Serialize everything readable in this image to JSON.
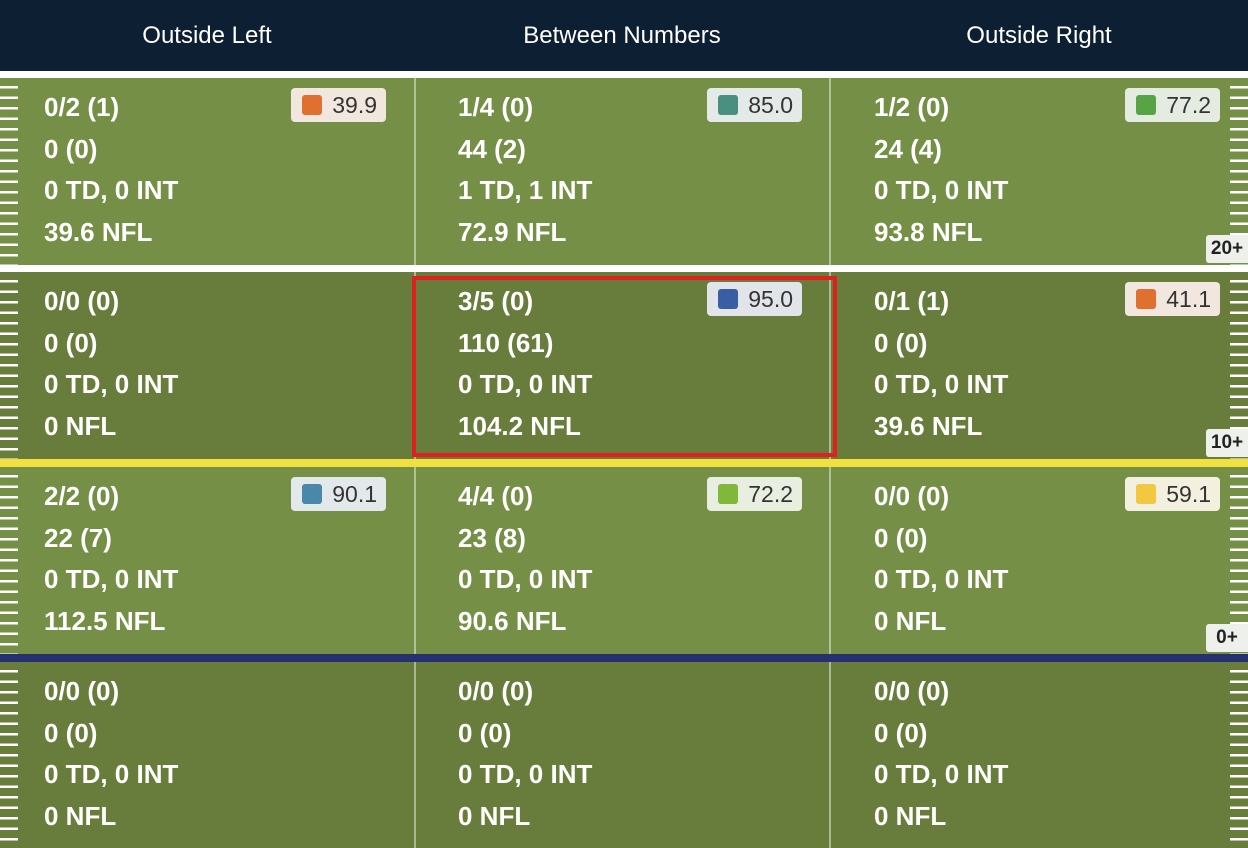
{
  "header": {
    "columns": [
      "Outside Left",
      "Between Numbers",
      "Outside Right"
    ]
  },
  "rows": [
    {
      "label": "20+",
      "cells": [
        {
          "lines": [
            "0/2 (1)",
            "0 (0)",
            "0 TD, 0 INT",
            "39.6 NFL"
          ],
          "grade": "39.9",
          "grade_color": "#e07030"
        },
        {
          "lines": [
            "1/4 (0)",
            "44 (2)",
            "1 TD, 1 INT",
            "72.9 NFL"
          ],
          "grade": "85.0",
          "grade_color": "#4a9080"
        },
        {
          "lines": [
            "1/2 (0)",
            "24 (4)",
            "0 TD, 0 INT",
            "93.8 NFL"
          ],
          "grade": "77.2",
          "grade_color": "#58a444"
        }
      ]
    },
    {
      "label": "10+",
      "cells": [
        {
          "lines": [
            "0/0 (0)",
            "0 (0)",
            "0 TD, 0 INT",
            "0 NFL"
          ]
        },
        {
          "lines": [
            "3/5 (0)",
            "110 (61)",
            "0 TD, 0 INT",
            "104.2 NFL"
          ],
          "grade": "95.0",
          "grade_color": "#3a5ea4",
          "selected": true
        },
        {
          "lines": [
            "0/1 (1)",
            "0 (0)",
            "0 TD, 0 INT",
            "39.6 NFL"
          ],
          "grade": "41.1",
          "grade_color": "#e07030"
        }
      ]
    },
    {
      "label": "0+",
      "cells": [
        {
          "lines": [
            "2/2 (0)",
            "22 (7)",
            "0 TD, 0 INT",
            "112.5 NFL"
          ],
          "grade": "90.1",
          "grade_color": "#4a88aa"
        },
        {
          "lines": [
            "4/4 (0)",
            "23 (8)",
            "0 TD, 0 INT",
            "90.6 NFL"
          ],
          "grade": "72.2",
          "grade_color": "#80b83a"
        },
        {
          "lines": [
            "0/0 (0)",
            "0 (0)",
            "0 TD, 0 INT",
            "0 NFL"
          ],
          "grade": "59.1",
          "grade_color": "#f2c840"
        }
      ]
    },
    {
      "cells": [
        {
          "lines": [
            "0/0 (0)",
            "0 (0)",
            "0 TD, 0 INT",
            "0 NFL"
          ]
        },
        {
          "lines": [
            "0/0 (0)",
            "0 (0)",
            "0 TD, 0 INT",
            "0 NFL"
          ]
        },
        {
          "lines": [
            "0/0 (0)",
            "0 (0)",
            "0 TD, 0 INT",
            "0 NFL"
          ]
        }
      ]
    }
  ]
}
